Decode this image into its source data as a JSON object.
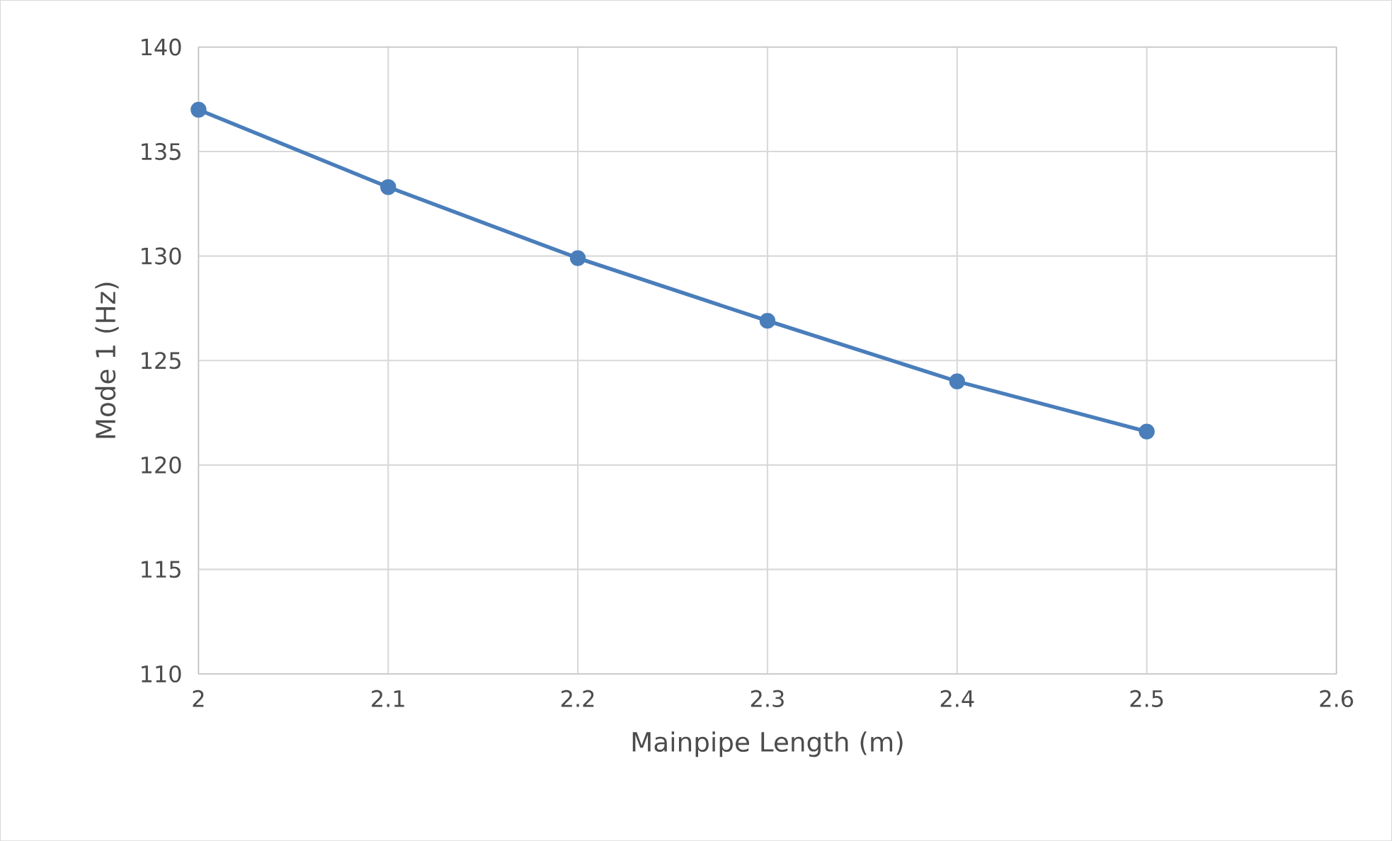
{
  "chart_data": {
    "type": "line",
    "xlabel": "Mainpipe Length (m)",
    "ylabel": "Mode 1 (Hz)",
    "x": [
      2,
      2.1,
      2.2,
      2.3,
      2.4,
      2.5
    ],
    "series": [
      {
        "color": "#4a7ebb",
        "values": [
          137.0,
          133.3,
          129.9,
          126.9,
          124.0,
          121.6
        ]
      }
    ],
    "xlim": [
      2,
      2.6
    ],
    "xticks": [
      2,
      2.1,
      2.2,
      2.3,
      2.4,
      2.5,
      2.6
    ],
    "ylim": [
      110,
      140
    ],
    "yticks": [
      110,
      115,
      120,
      125,
      130,
      135,
      140
    ],
    "grid": true,
    "marker": "circle",
    "line_style": "solid"
  }
}
